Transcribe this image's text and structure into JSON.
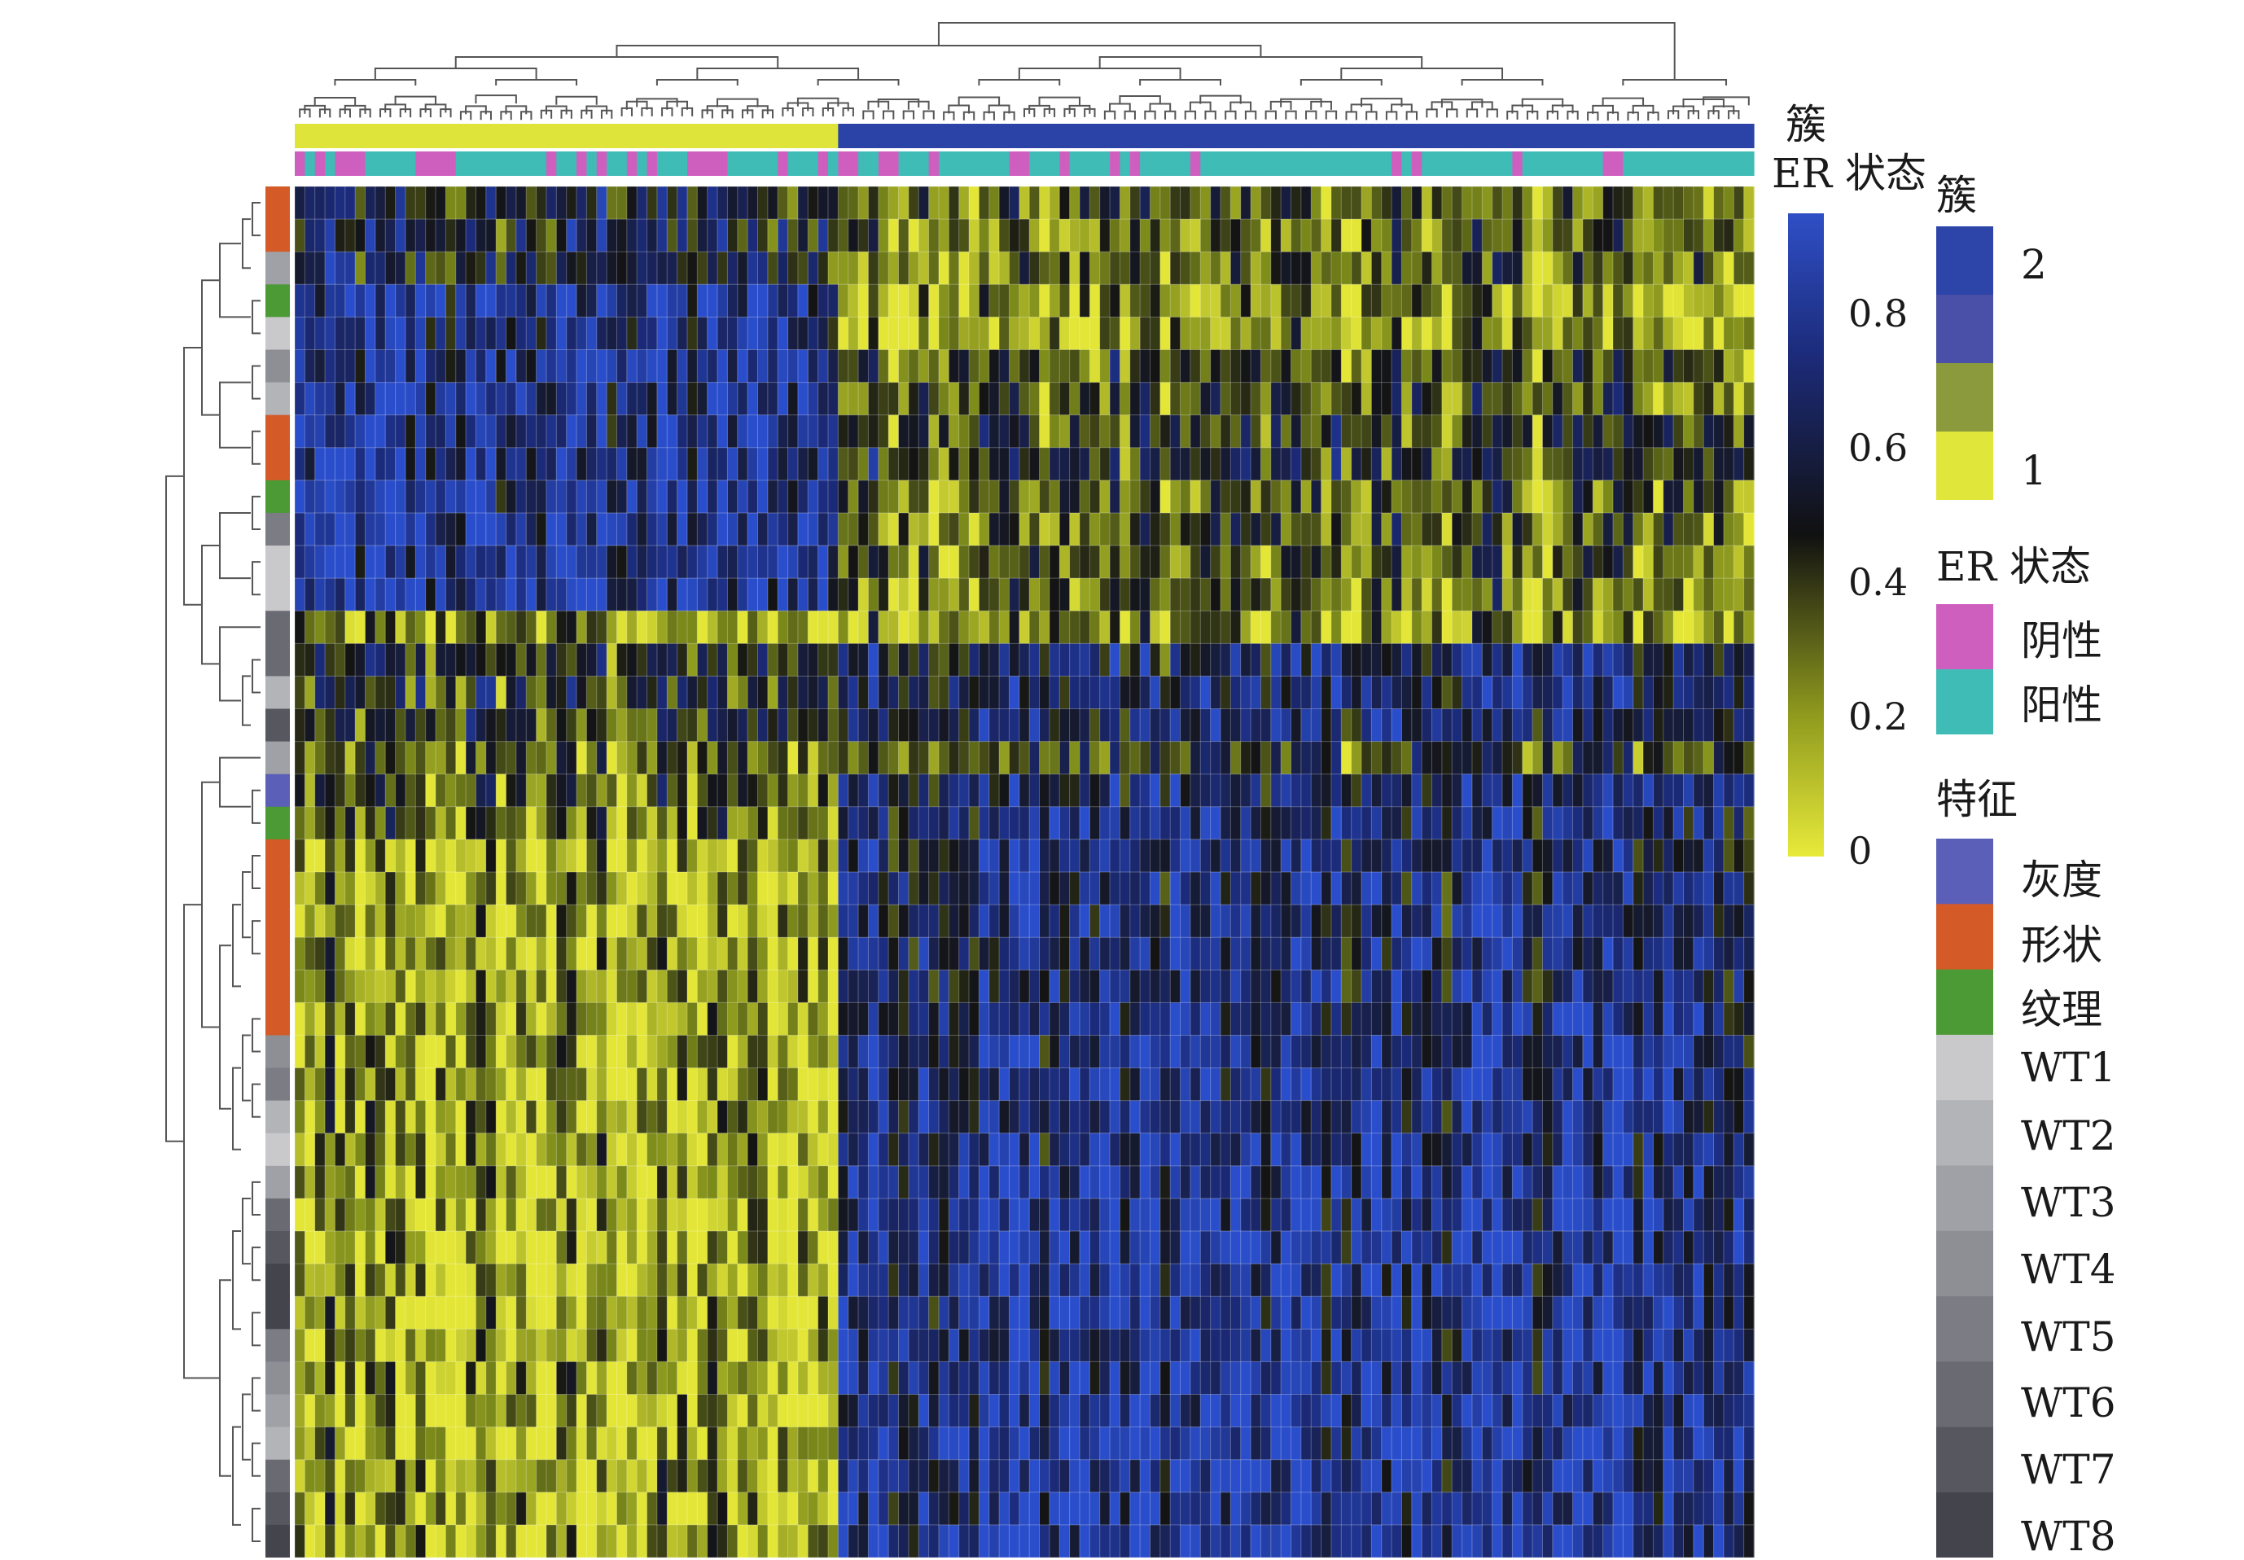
{
  "chart_data": {
    "type": "heatmap",
    "title": "",
    "row_count": 42,
    "column_count": 145,
    "column_split": 54,
    "value_range": [
      0,
      1
    ],
    "colorbar": {
      "title": "",
      "ticks": [
        "0",
        "0.2",
        "0.4",
        "0.6",
        "0.8"
      ],
      "tick_values": [
        0,
        0.2,
        0.4,
        0.6,
        0.8
      ],
      "colors": [
        "#e3e637",
        "#7c8a1a",
        "#141414",
        "#1b2a78",
        "#2a4ecb"
      ]
    },
    "column_tracks": [
      {
        "label": "簇",
        "values_note": "first 54 columns cluster 1, remaining 91 columns cluster 2"
      },
      {
        "label": "ER 状态",
        "values_note": "mostly 阳性 with scattered 阴性"
      }
    ],
    "legends": {
      "cluster": {
        "title": "簇",
        "items": [
          {
            "label": "2",
            "color": "#2d44a8"
          },
          {
            "label": "",
            "color": "#4a4fa8"
          },
          {
            "label": "",
            "color": "#8a9a3c"
          },
          {
            "label": "1",
            "color": "#e0e63a"
          }
        ]
      },
      "er_status": {
        "title": "ER 状态",
        "items": [
          {
            "label": "阴性",
            "color": "#cf5fbf"
          },
          {
            "label": "阳性",
            "color": "#3fbcb6"
          }
        ]
      },
      "feature": {
        "title": "特征",
        "items": [
          {
            "label": "灰度",
            "color": "#5c5fb8"
          },
          {
            "label": "形状",
            "color": "#d45a27"
          },
          {
            "label": "纹理",
            "color": "#4c9a36"
          },
          {
            "label": "WT1",
            "color": "#c9c9cc"
          },
          {
            "label": "WT2",
            "color": "#b3b4b8"
          },
          {
            "label": "WT3",
            "color": "#a0a1a6"
          },
          {
            "label": "WT4",
            "color": "#8e8f95"
          },
          {
            "label": "WT5",
            "color": "#7c7d84"
          },
          {
            "label": "WT6",
            "color": "#696a72"
          },
          {
            "label": "WT7",
            "color": "#56575f"
          },
          {
            "label": "WT8",
            "color": "#43444c"
          }
        ]
      }
    },
    "row_features": [
      "形状",
      "形状",
      "WT3",
      "纹理",
      "WT1",
      "WT4",
      "WT2",
      "形状",
      "形状",
      "纹理",
      "WT5",
      "WT1",
      "WT1",
      "WT6",
      "WT6",
      "WT2",
      "WT7",
      "WT3",
      "灰度",
      "纹理",
      "形状",
      "形状",
      "形状",
      "形状",
      "形状",
      "形状",
      "WT4",
      "WT5",
      "WT2",
      "WT1",
      "WT3",
      "WT6",
      "WT7",
      "WT8",
      "WT8",
      "WT5",
      "WT4",
      "WT3",
      "WT2",
      "WT6",
      "WT7",
      "WT8"
    ],
    "row_blocks": [
      {
        "rows": [
          0,
          2
        ],
        "left": 0.55,
        "right": 0.3
      },
      {
        "rows": [
          3,
          4
        ],
        "left": 0.78,
        "right": 0.18
      },
      {
        "rows": [
          5,
          6
        ],
        "left": 0.82,
        "right": 0.36
      },
      {
        "rows": [
          7,
          8
        ],
        "left": 0.8,
        "right": 0.45
      },
      {
        "rows": [
          9,
          10
        ],
        "left": 0.84,
        "right": 0.34
      },
      {
        "rows": [
          11,
          12
        ],
        "left": 0.86,
        "right": 0.3
      },
      {
        "rows": [
          13,
          13
        ],
        "left": 0.18,
        "right": 0.2
      },
      {
        "rows": [
          14,
          16
        ],
        "left": 0.45,
        "right": 0.66
      },
      {
        "rows": [
          17,
          17
        ],
        "left": 0.28,
        "right": 0.42
      },
      {
        "rows": [
          18,
          19
        ],
        "left": 0.3,
        "right": 0.72
      },
      {
        "rows": [
          20,
          24
        ],
        "left": 0.14,
        "right": 0.72
      },
      {
        "rows": [
          25,
          29
        ],
        "left": 0.16,
        "right": 0.78
      },
      {
        "rows": [
          30,
          35
        ],
        "left": 0.12,
        "right": 0.82
      },
      {
        "rows": [
          36,
          41
        ],
        "left": 0.13,
        "right": 0.84
      }
    ]
  },
  "labels": {
    "track_cluster": "簇",
    "track_er": "ER 状态",
    "colorbar_ticks": [
      "0.8",
      "0.6",
      "0.4",
      "0.2",
      "0"
    ]
  }
}
